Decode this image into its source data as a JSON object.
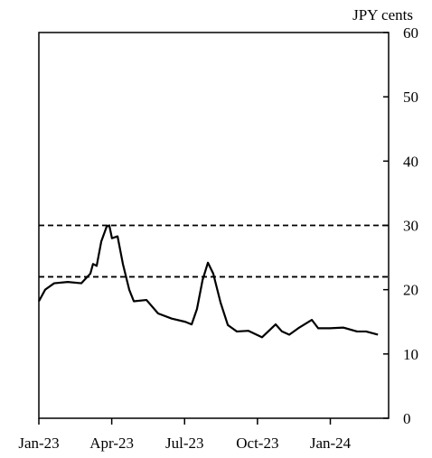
{
  "chart_data": {
    "type": "line",
    "y_axis_label": "JPY cents",
    "x": [
      0,
      0.26,
      0.63,
      1.19,
      1.75,
      2.12,
      2.23,
      2.38,
      2.57,
      2.79,
      2.9,
      3.01,
      3.24,
      3.46,
      3.72,
      3.91,
      4.43,
      4.91,
      5.47,
      6.03,
      6.29,
      6.51,
      6.74,
      6.96,
      7.18,
      7.48,
      7.78,
      8.15,
      8.63,
      9.19,
      9.75,
      10.01,
      10.31,
      10.68,
      11.24,
      11.5,
      11.98,
      12.54,
      13.1,
      13.47,
      13.96
    ],
    "series": [
      {
        "color": "#000000",
        "values": [
          18.2,
          20,
          21,
          21.2,
          21,
          22.5,
          24,
          23.7,
          27.5,
          29.8,
          30,
          28,
          28.3,
          24,
          20,
          18.2,
          18.4,
          16.3,
          15.5,
          15,
          14.6,
          17,
          21.5,
          24.2,
          22.5,
          18,
          14.5,
          13.5,
          13.6,
          12.6,
          14.6,
          13.5,
          13,
          14,
          15.3,
          14,
          14,
          14.1,
          13.5,
          13.5,
          13
        ]
      }
    ],
    "reference_lines": [
      30,
      22
    ],
    "xlim": [
      0,
      14.4
    ],
    "xticks": [
      {
        "value": 0,
        "label": "Jan-23"
      },
      {
        "value": 3,
        "label": "Apr-23"
      },
      {
        "value": 6,
        "label": "Jul-23"
      },
      {
        "value": 9,
        "label": "Oct-23"
      },
      {
        "value": 12,
        "label": "Jan-24"
      }
    ],
    "ylim": [
      0,
      60
    ],
    "yticks": [
      0,
      10,
      20,
      30,
      40,
      50,
      60
    ]
  }
}
